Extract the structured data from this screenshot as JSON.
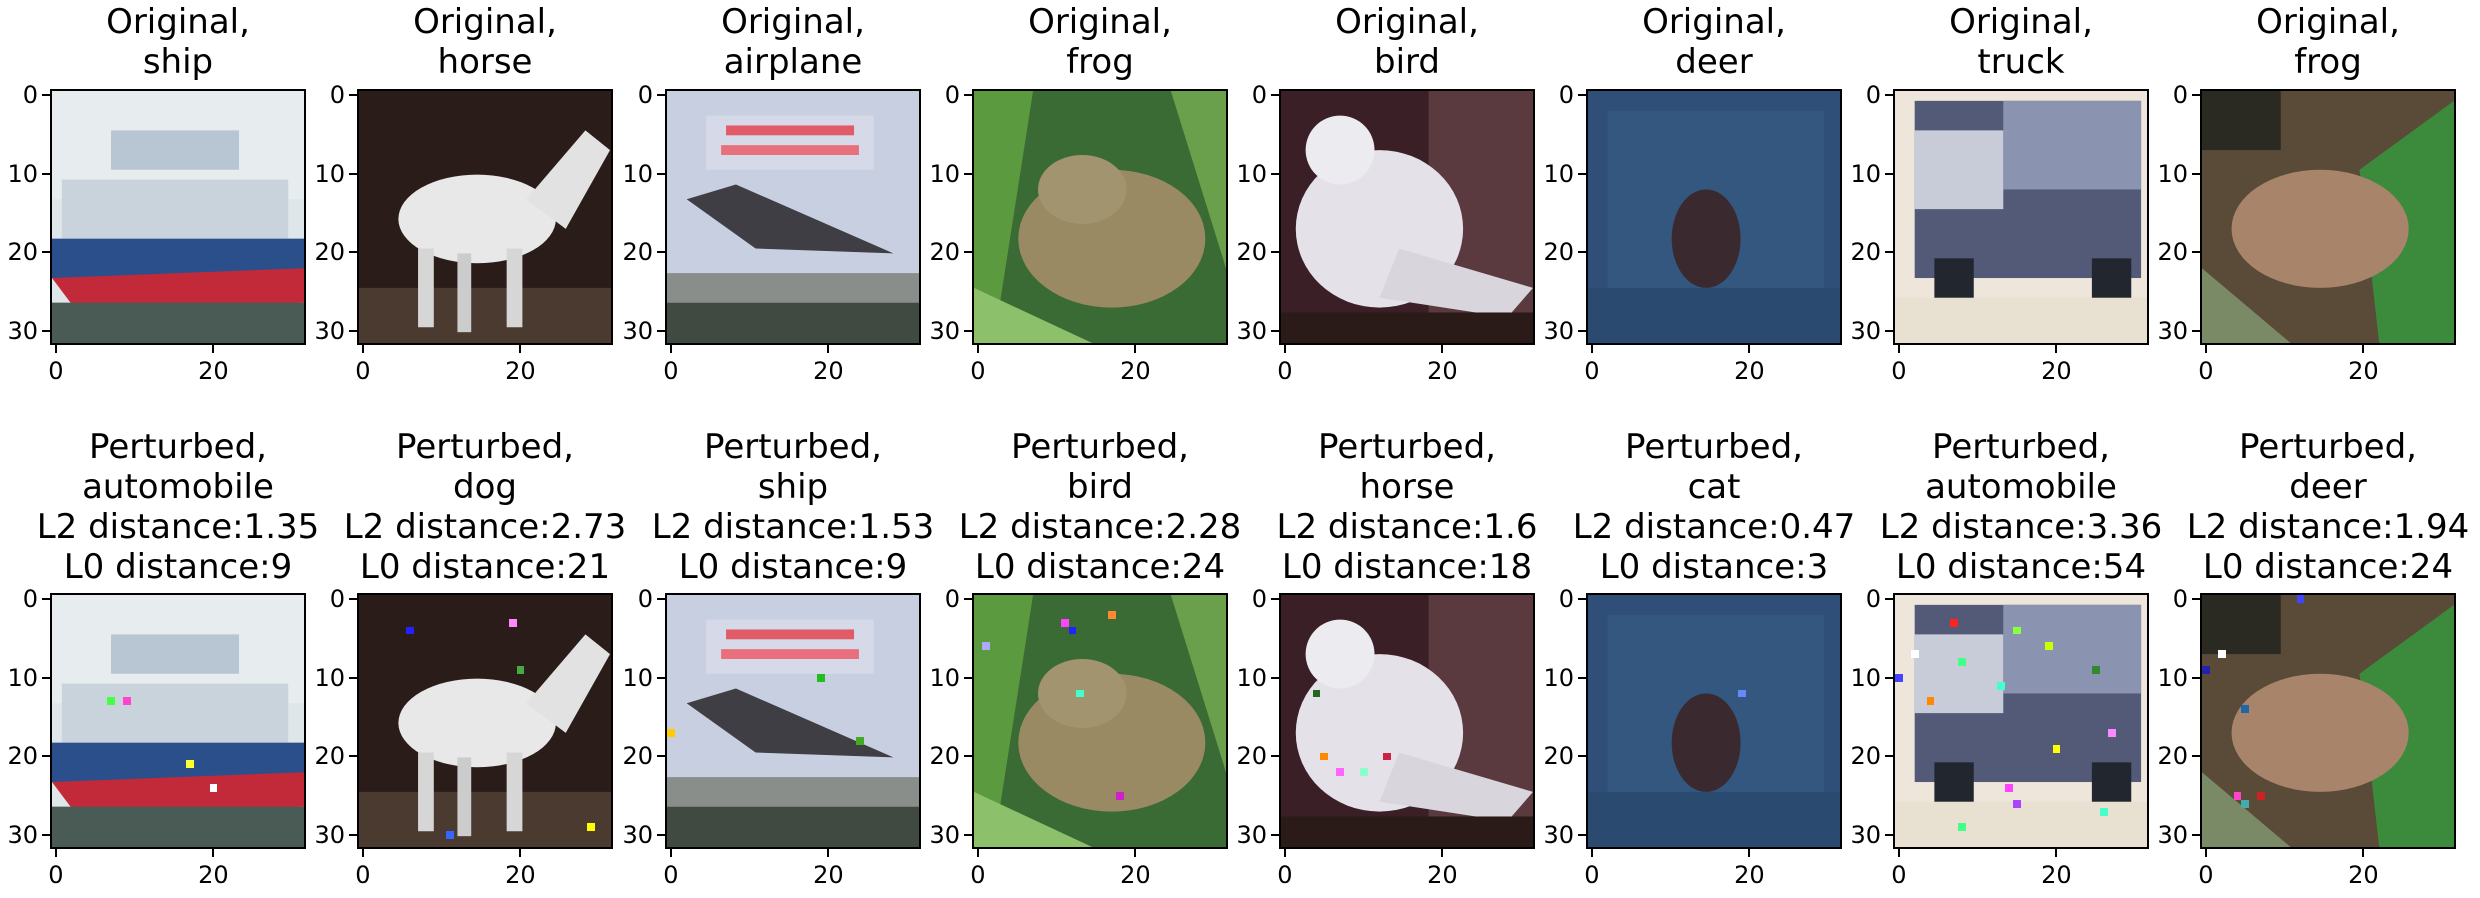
{
  "figure": {
    "rows": [
      {
        "row": "original",
        "panels": [
          {
            "title_lines": [
              "Original,",
              "ship"
            ],
            "scene": "ship",
            "perturbed_pixels": []
          },
          {
            "title_lines": [
              "Original,",
              "horse"
            ],
            "scene": "horse",
            "perturbed_pixels": []
          },
          {
            "title_lines": [
              "Original,",
              "airplane"
            ],
            "scene": "airplane",
            "perturbed_pixels": []
          },
          {
            "title_lines": [
              "Original,",
              "frog"
            ],
            "scene": "frog",
            "perturbed_pixels": []
          },
          {
            "title_lines": [
              "Original,",
              "bird"
            ],
            "scene": "bird",
            "perturbed_pixels": []
          },
          {
            "title_lines": [
              "Original,",
              "deer"
            ],
            "scene": "deer",
            "perturbed_pixels": []
          },
          {
            "title_lines": [
              "Original,",
              "truck"
            ],
            "scene": "truck",
            "perturbed_pixels": []
          },
          {
            "title_lines": [
              "Original,",
              "frog"
            ],
            "scene": "frog2",
            "perturbed_pixels": []
          }
        ]
      },
      {
        "row": "perturbed",
        "panels": [
          {
            "title_lines": [
              "Perturbed,",
              "automobile",
              "L2 distance:1.35",
              "L0 distance:9"
            ],
            "scene": "ship",
            "perturbed_pixels": [
              {
                "x": 9,
                "y": 13,
                "color": "#ff44cc"
              },
              {
                "x": 17,
                "y": 21,
                "color": "#ffff33"
              },
              {
                "x": 20,
                "y": 24,
                "color": "#ffffff"
              },
              {
                "x": 7,
                "y": 13,
                "color": "#44ff44"
              }
            ]
          },
          {
            "title_lines": [
              "Perturbed,",
              "dog",
              "L2 distance:2.73",
              "L0 distance:21"
            ],
            "scene": "horse",
            "perturbed_pixels": [
              {
                "x": 6,
                "y": 4,
                "color": "#2222ff"
              },
              {
                "x": 19,
                "y": 3,
                "color": "#ff88ff"
              },
              {
                "x": 20,
                "y": 9,
                "color": "#44aa44"
              },
              {
                "x": 29,
                "y": 29,
                "color": "#ffff00"
              },
              {
                "x": 11,
                "y": 30,
                "color": "#3366ff"
              }
            ]
          },
          {
            "title_lines": [
              "Perturbed,",
              "ship",
              "L2 distance:1.53",
              "L0 distance:9"
            ],
            "scene": "airplane",
            "perturbed_pixels": [
              {
                "x": 19,
                "y": 10,
                "color": "#22bb22"
              },
              {
                "x": 24,
                "y": 18,
                "color": "#44aa22"
              },
              {
                "x": 0,
                "y": 17,
                "color": "#ffcc00"
              }
            ]
          },
          {
            "title_lines": [
              "Perturbed,",
              "bird",
              "L2 distance:2.28",
              "L0 distance:24"
            ],
            "scene": "frog",
            "perturbed_pixels": [
              {
                "x": 17,
                "y": 2,
                "color": "#ff8833"
              },
              {
                "x": 11,
                "y": 3,
                "color": "#ff44ff"
              },
              {
                "x": 12,
                "y": 4,
                "color": "#2222ff"
              },
              {
                "x": 13,
                "y": 12,
                "color": "#44ffcc"
              },
              {
                "x": 1,
                "y": 6,
                "color": "#aaaaff"
              },
              {
                "x": 18,
                "y": 25,
                "color": "#cc22cc"
              }
            ]
          },
          {
            "title_lines": [
              "Perturbed,",
              "horse",
              "L2 distance:1.6",
              "L0 distance:18"
            ],
            "scene": "bird",
            "perturbed_pixels": [
              {
                "x": 4,
                "y": 12,
                "color": "#226622"
              },
              {
                "x": 5,
                "y": 20,
                "color": "#ff8800"
              },
              {
                "x": 7,
                "y": 22,
                "color": "#ff66ff"
              },
              {
                "x": 10,
                "y": 22,
                "color": "#88ffcc"
              },
              {
                "x": 13,
                "y": 20,
                "color": "#cc2244"
              }
            ]
          },
          {
            "title_lines": [
              "Perturbed,",
              "cat",
              "L2 distance:0.47",
              "L0 distance:3"
            ],
            "scene": "deer",
            "perturbed_pixels": [
              {
                "x": 19,
                "y": 12,
                "color": "#6688ff"
              }
            ]
          },
          {
            "title_lines": [
              "Perturbed,",
              "automobile",
              "L2 distance:3.36",
              "L0 distance:54"
            ],
            "scene": "truck",
            "perturbed_pixels": [
              {
                "x": 7,
                "y": 3,
                "color": "#ff2222"
              },
              {
                "x": 15,
                "y": 4,
                "color": "#88ff44"
              },
              {
                "x": 19,
                "y": 6,
                "color": "#ccff00"
              },
              {
                "x": 2,
                "y": 7,
                "color": "#ffffff"
              },
              {
                "x": 8,
                "y": 8,
                "color": "#44ff88"
              },
              {
                "x": 13,
                "y": 11,
                "color": "#44ffcc"
              },
              {
                "x": 0,
                "y": 10,
                "color": "#4444ff"
              },
              {
                "x": 25,
                "y": 9,
                "color": "#338833"
              },
              {
                "x": 27,
                "y": 17,
                "color": "#ff88ff"
              },
              {
                "x": 20,
                "y": 19,
                "color": "#ffff00"
              },
              {
                "x": 14,
                "y": 24,
                "color": "#ff44ff"
              },
              {
                "x": 15,
                "y": 26,
                "color": "#aa44ff"
              },
              {
                "x": 8,
                "y": 29,
                "color": "#44ff88"
              },
              {
                "x": 26,
                "y": 27,
                "color": "#44ffcc"
              },
              {
                "x": 4,
                "y": 13,
                "color": "#ff8800"
              }
            ]
          },
          {
            "title_lines": [
              "Perturbed,",
              "deer",
              "L2 distance:1.94",
              "L0 distance:24"
            ],
            "scene": "frog2",
            "perturbed_pixels": [
              {
                "x": 12,
                "y": 0,
                "color": "#4444ff"
              },
              {
                "x": 2,
                "y": 7,
                "color": "#ffffff"
              },
              {
                "x": 0,
                "y": 9,
                "color": "#2222aa"
              },
              {
                "x": 5,
                "y": 14,
                "color": "#2266aa"
              },
              {
                "x": 4,
                "y": 25,
                "color": "#ff44cc"
              },
              {
                "x": 7,
                "y": 25,
                "color": "#cc2222"
              },
              {
                "x": 5,
                "y": 26,
                "color": "#44aaaa"
              }
            ]
          }
        ]
      }
    ],
    "axis": {
      "x_ticks": [
        {
          "value": 0,
          "label": "0"
        },
        {
          "value": 20,
          "label": "20"
        }
      ],
      "y_ticks": [
        {
          "value": 0,
          "label": "0"
        },
        {
          "value": 10,
          "label": "10"
        },
        {
          "value": 20,
          "label": "20"
        },
        {
          "value": 30,
          "label": "30"
        }
      ],
      "pixel_range": [
        0,
        32
      ]
    }
  }
}
